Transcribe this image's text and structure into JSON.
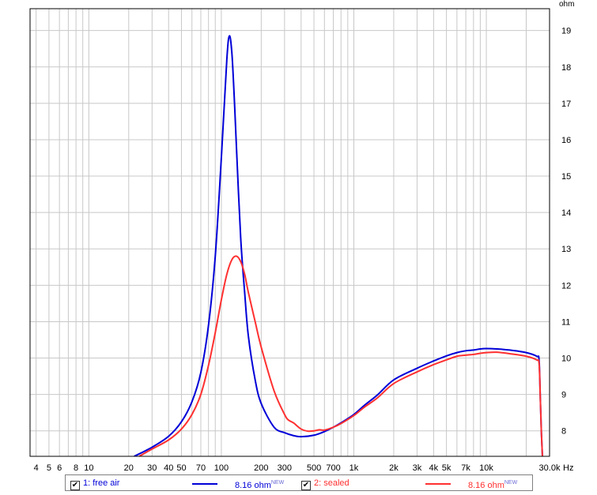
{
  "chart_data": {
    "type": "line",
    "title": "",
    "xlabel": "",
    "ylabel": "",
    "x_unit": "Hz",
    "y_unit": "ohm",
    "x_scale": "log",
    "xlim": [
      3.6,
      30000
    ],
    "ylim": [
      7.3,
      19.6
    ],
    "grid": true,
    "legend_position": "bottom",
    "x_ticks": [
      {
        "value": 4,
        "label": "4"
      },
      {
        "value": 5,
        "label": "5"
      },
      {
        "value": 6,
        "label": "6"
      },
      {
        "value": 8,
        "label": "8"
      },
      {
        "value": 10,
        "label": "10"
      },
      {
        "value": 20,
        "label": "20"
      },
      {
        "value": 30,
        "label": "30"
      },
      {
        "value": 40,
        "label": "40"
      },
      {
        "value": 50,
        "label": "50"
      },
      {
        "value": 70,
        "label": "70"
      },
      {
        "value": 100,
        "label": "100"
      },
      {
        "value": 200,
        "label": "200"
      },
      {
        "value": 300,
        "label": "300"
      },
      {
        "value": 500,
        "label": "500"
      },
      {
        "value": 700,
        "label": "700"
      },
      {
        "value": 1000,
        "label": "1k"
      },
      {
        "value": 2000,
        "label": "2k"
      },
      {
        "value": 3000,
        "label": "3k"
      },
      {
        "value": 4000,
        "label": "4k"
      },
      {
        "value": 5000,
        "label": "5k"
      },
      {
        "value": 7000,
        "label": "7k"
      },
      {
        "value": 10000,
        "label": "10k"
      },
      {
        "value": 30000,
        "label": "30.0k"
      }
    ],
    "y_ticks": [
      8,
      9,
      10,
      11,
      12,
      13,
      14,
      15,
      16,
      17,
      18,
      19
    ],
    "series": [
      {
        "name": "1: free air",
        "color": "#0000d8",
        "x": [
          22,
          30,
          40,
          50,
          60,
          70,
          80,
          90,
          100,
          110,
          115,
          120,
          125,
          130,
          140,
          150,
          160,
          180,
          200,
          250,
          300,
          350,
          400,
          500,
          600,
          700,
          800,
          1000,
          1200,
          1500,
          2000,
          3000,
          4000,
          5000,
          6000,
          7000,
          8000,
          9000,
          10000,
          12000,
          15000,
          20000,
          24000,
          25000,
          25500,
          26000,
          26500
        ],
        "values": [
          7.3,
          7.55,
          7.85,
          8.25,
          8.8,
          9.6,
          10.9,
          12.8,
          15.5,
          18.2,
          18.85,
          18.4,
          17.2,
          15.8,
          13.3,
          11.8,
          10.6,
          9.4,
          8.75,
          8.1,
          7.95,
          7.87,
          7.84,
          7.88,
          7.98,
          8.1,
          8.22,
          8.45,
          8.7,
          8.98,
          9.4,
          9.72,
          9.92,
          10.06,
          10.15,
          10.2,
          10.22,
          10.25,
          10.26,
          10.25,
          10.22,
          10.15,
          10.05,
          9.95,
          9.0,
          8.0,
          7.3
        ]
      },
      {
        "name": "2: sealed",
        "color": "#ff3030",
        "x": [
          24,
          30,
          40,
          50,
          60,
          70,
          80,
          90,
          100,
          110,
          120,
          130,
          140,
          150,
          160,
          180,
          200,
          250,
          300,
          320,
          350,
          400,
          450,
          500,
          550,
          600,
          700,
          800,
          1000,
          1200,
          1500,
          2000,
          3000,
          4000,
          5000,
          6000,
          7000,
          8000,
          9000,
          10000,
          12000,
          15000,
          20000,
          24000,
          25000,
          25500,
          26000,
          26500
        ],
        "values": [
          7.3,
          7.5,
          7.75,
          8.05,
          8.45,
          9.0,
          9.8,
          10.7,
          11.6,
          12.3,
          12.7,
          12.8,
          12.65,
          12.3,
          11.8,
          11.0,
          10.3,
          9.1,
          8.45,
          8.3,
          8.22,
          8.05,
          7.99,
          8.0,
          8.03,
          8.02,
          8.1,
          8.2,
          8.42,
          8.65,
          8.9,
          9.3,
          9.62,
          9.82,
          9.95,
          10.05,
          10.08,
          10.1,
          10.13,
          10.15,
          10.16,
          10.12,
          10.05,
          9.95,
          9.85,
          9.0,
          8.0,
          7.3
        ]
      }
    ]
  },
  "legend": {
    "items": [
      {
        "label": "1: free air",
        "value": "8.16 ohm",
        "badge": "NEW",
        "color": "#0000d8",
        "checked": "✔"
      },
      {
        "label": "2: sealed",
        "value": "8.16 ohm",
        "badge": "NEW",
        "color": "#ff3030",
        "checked": "✔"
      }
    ]
  }
}
